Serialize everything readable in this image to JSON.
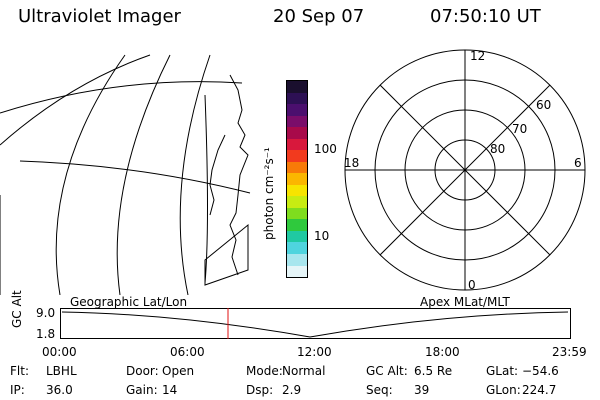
{
  "header": {
    "title": "Ultraviolet Imager",
    "date": "20 Sep 07",
    "time": "07:50:10 UT"
  },
  "colorbar": {
    "unit_label": "photon cm⁻²s⁻¹",
    "tick_labels": [
      "100",
      "10"
    ],
    "colors": [
      "#1a0f2e",
      "#2d1054",
      "#4b0f6e",
      "#7a0d6a",
      "#a80a4a",
      "#d8183c",
      "#f23a1e",
      "#f87a08",
      "#fbb600",
      "#f7e400",
      "#c8ec12",
      "#7fdd1e",
      "#2fc93d",
      "#20c9a2",
      "#4fd4de",
      "#a8e6ee",
      "#e6f5f8"
    ]
  },
  "polar_plot": {
    "mlt_labels": {
      "top": "12",
      "left": "18",
      "right": "6",
      "bottom": "0"
    },
    "lat_labels": [
      "60",
      "70",
      "80"
    ]
  },
  "timeline": {
    "y_label": "GC Alt",
    "y_ticks": [
      "9.0",
      "1.8"
    ],
    "left_caption": "Geographic Lat/Lon",
    "right_caption": "Apex MLat/MLT",
    "x_ticks": [
      "00:00",
      "06:00",
      "12:00",
      "18:00",
      "23:59"
    ],
    "marker_color": "#e01010"
  },
  "footer": {
    "row1": [
      {
        "label": "Flt:",
        "value": "LBHL"
      },
      {
        "label": "Door:",
        "value": "Open"
      },
      {
        "label": "Mode:",
        "value": "Normal"
      },
      {
        "label": "GC Alt:",
        "value": "6.5 Re"
      },
      {
        "label": "GLat:",
        "value": "−54.6"
      }
    ],
    "row2": [
      {
        "label": "IP:",
        "value": "36.0"
      },
      {
        "label": "Gain:",
        "value": "14"
      },
      {
        "label": "Dsp:",
        "value": "2.9"
      },
      {
        "label": "Seq:",
        "value": "39"
      },
      {
        "label": "GLon:",
        "value": "224.7"
      }
    ]
  }
}
